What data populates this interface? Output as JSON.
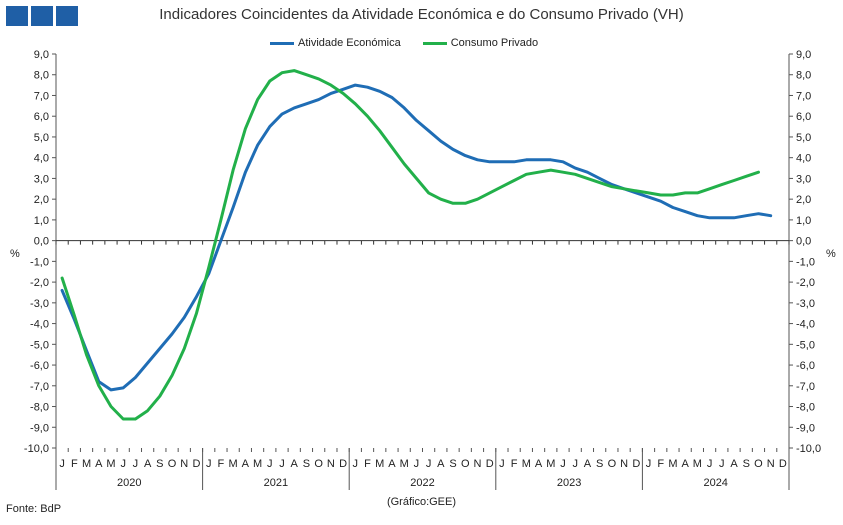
{
  "header": {
    "title": "Indicadores Coincidentes da Atividade Económica e do Consumo Privado (VH)"
  },
  "footer": {
    "source": "Fonte: BdP",
    "credit": "(Gráfico:GEE)"
  },
  "chart_data": {
    "type": "line",
    "title": "Indicadores Coincidentes da Atividade Económica e do Consumo Privado (VH)",
    "ylabel_left": "%",
    "ylabel_right": "%",
    "ylim": [
      -10,
      9
    ],
    "yticks": [
      "9,0",
      "8,0",
      "7,0",
      "6,0",
      "5,0",
      "4,0",
      "3,0",
      "2,0",
      "1,0",
      "0,0",
      "-1,0",
      "-2,0",
      "-3,0",
      "-4,0",
      "-5,0",
      "-6,0",
      "-7,0",
      "-8,0",
      "-9,0",
      "-10,0"
    ],
    "grid": false,
    "legend_position": "top-center",
    "month_labels": [
      "J",
      "F",
      "M",
      "A",
      "M",
      "J",
      "J",
      "A",
      "S",
      "O",
      "N",
      "D"
    ],
    "years": [
      "2020",
      "2021",
      "2022",
      "2023",
      "2024"
    ],
    "series": [
      {
        "name": "Atividade Económica",
        "color": "#1f6db5",
        "values": [
          -2.4,
          -3.8,
          -5.3,
          -6.8,
          -7.2,
          -7.1,
          -6.6,
          -5.9,
          -5.2,
          -4.5,
          -3.7,
          -2.7,
          -1.6,
          0.0,
          1.6,
          3.3,
          4.6,
          5.5,
          6.1,
          6.4,
          6.6,
          6.8,
          7.1,
          7.3,
          7.5,
          7.4,
          7.2,
          6.9,
          6.4,
          5.8,
          5.3,
          4.8,
          4.4,
          4.1,
          3.9,
          3.8,
          3.8,
          3.8,
          3.9,
          3.9,
          3.9,
          3.8,
          3.5,
          3.3,
          3.0,
          2.7,
          2.5,
          2.3,
          2.1,
          1.9,
          1.6,
          1.4,
          1.2,
          1.1,
          1.1,
          1.1,
          1.2,
          1.3,
          1.2
        ]
      },
      {
        "name": "Consumo Privado",
        "color": "#22b04a",
        "values": [
          -1.8,
          -3.6,
          -5.5,
          -7.0,
          -8.0,
          -8.6,
          -8.6,
          -8.2,
          -7.5,
          -6.5,
          -5.2,
          -3.5,
          -1.3,
          1.0,
          3.4,
          5.4,
          6.8,
          7.7,
          8.1,
          8.2,
          8.0,
          7.8,
          7.5,
          7.1,
          6.6,
          6.0,
          5.3,
          4.5,
          3.7,
          3.0,
          2.3,
          2.0,
          1.8,
          1.8,
          2.0,
          2.3,
          2.6,
          2.9,
          3.2,
          3.3,
          3.4,
          3.3,
          3.2,
          3.0,
          2.8,
          2.6,
          2.5,
          2.4,
          2.3,
          2.2,
          2.2,
          2.3,
          2.3,
          2.5,
          2.7,
          2.9,
          3.1,
          3.3
        ]
      }
    ]
  }
}
